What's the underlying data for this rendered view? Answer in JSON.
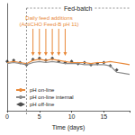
{
  "chart_data": {
    "type": "line",
    "x_label": "Time (days)",
    "xlim": [
      0,
      19
    ],
    "xticks": [
      0,
      5,
      10,
      15
    ],
    "ylim": [
      6.5,
      7.5
    ],
    "tick_labels": "x",
    "grid": false,
    "legend": "bottom-left",
    "series": [
      {
        "name": "pH on-line",
        "type": "line",
        "color": "#e8893a",
        "marker": "none",
        "line_style": "solid",
        "x": [
          0,
          1,
          2,
          3,
          4,
          5,
          6,
          7,
          8,
          9,
          10,
          11,
          12,
          13,
          14,
          15,
          16,
          17,
          18,
          19
        ],
        "values": [
          6.95,
          6.96,
          6.95,
          6.94,
          6.97,
          6.98,
          6.97,
          6.98,
          6.97,
          6.96,
          6.95,
          6.95,
          6.95,
          6.94,
          6.95,
          6.95,
          6.96,
          6.95,
          6.94,
          6.93
        ]
      },
      {
        "name": "pH on-line internal",
        "type": "line",
        "color": "#8c8c8c",
        "marker": "none",
        "line_style": "solid",
        "x": [
          0,
          1,
          2,
          3,
          4,
          5,
          6,
          7,
          8,
          9,
          10,
          11,
          12,
          13,
          14,
          15,
          16,
          17,
          18,
          19
        ],
        "values": [
          6.94,
          6.95,
          6.94,
          6.93,
          6.95,
          6.96,
          6.95,
          6.96,
          6.95,
          6.94,
          6.94,
          6.94,
          6.93,
          6.93,
          6.93,
          6.93,
          6.92,
          6.86,
          6.85,
          6.84
        ]
      },
      {
        "name": "pH off-line",
        "type": "scatter",
        "color": "#222222",
        "marker": "diamond",
        "x": [
          0,
          1,
          2,
          3,
          4,
          5,
          6,
          7,
          8,
          9,
          10,
          11,
          12,
          13,
          14,
          15,
          16,
          17
        ],
        "values": [
          6.96,
          6.97,
          6.95,
          6.93,
          6.98,
          6.99,
          6.97,
          6.99,
          6.96,
          6.95,
          6.96,
          6.94,
          6.95,
          6.93,
          6.94,
          6.95,
          6.92,
          6.88
        ]
      }
    ],
    "annotations": [
      {
        "text": "Fed-batch",
        "x": [
          3,
          19
        ]
      },
      {
        "text": [
          "Daily feed additions",
          "(ActiCHO Feed-B pH 11)"
        ],
        "x": [
          4,
          5,
          6,
          7,
          8,
          9
        ],
        "color": "#e8893a"
      }
    ]
  }
}
